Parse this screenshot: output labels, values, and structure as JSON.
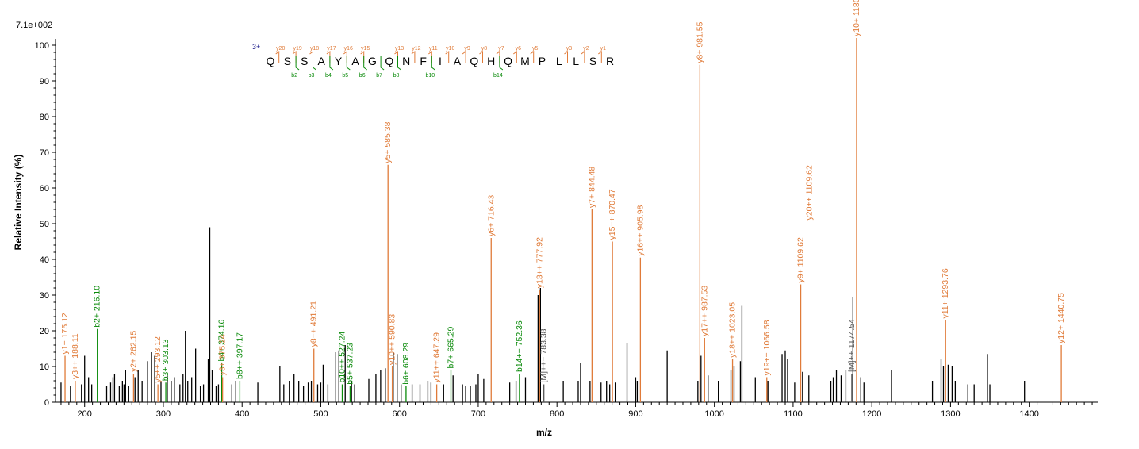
{
  "chart_data": {
    "type": "bar",
    "title": "",
    "max_intensity_label": "7.1e+002",
    "xlabel": "m/z",
    "ylabel": "Relative   Intensity (%)",
    "xlim": [
      163,
      1487
    ],
    "ylim": [
      0,
      100
    ],
    "x_ticks": [
      200,
      300,
      400,
      500,
      600,
      700,
      800,
      900,
      1000,
      1100,
      1200,
      1300,
      1400
    ],
    "y_ticks": [
      0,
      10,
      20,
      30,
      40,
      50,
      60,
      70,
      80,
      90,
      100
    ],
    "colors": {
      "y_ion": "#e07b39",
      "b_ion": "#0a8a0a",
      "other": "#555555",
      "unlabeled": "#000000",
      "charge": "#1a1a8a"
    },
    "sequence": {
      "charge_label": "3+",
      "residues": [
        "Q",
        "S",
        "S",
        "A",
        "Y",
        "A",
        "G",
        "Q",
        "N",
        "F",
        "I",
        "A",
        "Q",
        "H",
        "Q",
        "M",
        "P",
        "L",
        "L",
        "S",
        "R"
      ],
      "y_ions": [
        "y20",
        "y19",
        "y18",
        "y17",
        "y16",
        "y15",
        "",
        "y13",
        "y12",
        "y11",
        "y10",
        "y9",
        "y8",
        "y7",
        "y6",
        "y5",
        "",
        "y3",
        "y2",
        "y1"
      ],
      "b_ions": [
        "",
        "b2",
        "b3",
        "b4",
        "b5",
        "b6",
        "b7",
        "b8",
        "",
        "b10",
        "",
        "",
        "",
        "b14",
        "",
        "",
        "",
        "",
        "",
        ""
      ]
    },
    "labeled_peaks": [
      {
        "mz": 175.12,
        "intensity": 13,
        "label": "y1+ 175.12",
        "ion": "y"
      },
      {
        "mz": 188.11,
        "intensity": 6,
        "label": "y3++ 188.11",
        "ion": "y"
      },
      {
        "mz": 216.1,
        "intensity": 20.5,
        "label": "b2+ 216.10",
        "ion": "b"
      },
      {
        "mz": 262.15,
        "intensity": 8,
        "label": "y2+ 262.15",
        "ion": "y"
      },
      {
        "mz": 293.12,
        "intensity": 5,
        "label": "y5++ 293.12",
        "ion": "y"
      },
      {
        "mz": 303.13,
        "intensity": 5.5,
        "label": "b3+ 303.13",
        "ion": "b"
      },
      {
        "mz": 374.16,
        "intensity": 11,
        "label": "b4+ 374.16",
        "ion": "b"
      },
      {
        "mz": 375.24,
        "intensity": 7,
        "label": "y3+ 375.24",
        "ion": "y"
      },
      {
        "mz": 397.17,
        "intensity": 6,
        "label": "b8++ 397.17",
        "ion": "b"
      },
      {
        "mz": 491.21,
        "intensity": 15,
        "label": "y8++ 491.21",
        "ion": "y"
      },
      {
        "mz": 527.24,
        "intensity": 5,
        "label": "b10++ 527.24",
        "ion": "b"
      },
      {
        "mz": 537.23,
        "intensity": 4.5,
        "label": "b5+ 537.23",
        "ion": "b"
      },
      {
        "mz": 585.38,
        "intensity": 66.5,
        "label": "y5+ 585.38",
        "ion": "y"
      },
      {
        "mz": 590.83,
        "intensity": 10,
        "label": "y10++ 590.83",
        "ion": "y"
      },
      {
        "mz": 608.29,
        "intensity": 4.5,
        "label": "b6+ 608.29",
        "ion": "b"
      },
      {
        "mz": 647.29,
        "intensity": 5,
        "label": "y11++ 647.29",
        "ion": "y"
      },
      {
        "mz": 665.29,
        "intensity": 9,
        "label": "b7+ 665.29",
        "ion": "b"
      },
      {
        "mz": 716.43,
        "intensity": 46,
        "label": "y6+ 716.43",
        "ion": "y"
      },
      {
        "mz": 752.36,
        "intensity": 8,
        "label": "b14++ 752.36",
        "ion": "b"
      },
      {
        "mz": 777.92,
        "intensity": 31.5,
        "label": "y13++ 777.92",
        "ion": "y"
      },
      {
        "mz": 783.38,
        "intensity": 5,
        "label": "[M]+++ 783.38",
        "ion": "other"
      },
      {
        "mz": 844.48,
        "intensity": 54,
        "label": "y7+ 844.48",
        "ion": "y"
      },
      {
        "mz": 870.47,
        "intensity": 45,
        "label": "y15++ 870.47",
        "ion": "y"
      },
      {
        "mz": 905.98,
        "intensity": 40.5,
        "label": "y16++ 905.98",
        "ion": "y"
      },
      {
        "mz": 981.55,
        "intensity": 94.5,
        "label": "y8+ 981.55",
        "ion": "y"
      },
      {
        "mz": 987.53,
        "intensity": 18,
        "label": "y17++ 987.53",
        "ion": "y"
      },
      {
        "mz": 1023.05,
        "intensity": 12,
        "label": "y18++ 1023.05",
        "ion": "y"
      },
      {
        "mz": 1066.58,
        "intensity": 7,
        "label": "y19++ 1066.58",
        "ion": "y"
      },
      {
        "mz": 1109.62,
        "intensity": 33,
        "label": "y9+ 1109.62",
        "ion": "y"
      },
      {
        "mz": 1109.62,
        "intensity": 33,
        "label": "y20++ 1109.62",
        "ion": "y",
        "stack": 1
      },
      {
        "mz": 1174.54,
        "intensity": 8,
        "label": "[M]++ 1174.54",
        "ion": "other"
      },
      {
        "mz": 1180.65,
        "intensity": 102,
        "label": "y10+ 1180.65",
        "ion": "y"
      },
      {
        "mz": 1293.76,
        "intensity": 23,
        "label": "y11+ 1293.76",
        "ion": "y"
      },
      {
        "mz": 1440.75,
        "intensity": 16,
        "label": "y12+ 1440.75",
        "ion": "y"
      }
    ],
    "unlabeled_peaks": [
      [
        170,
        5.5
      ],
      [
        182,
        4.5
      ],
      [
        196,
        5
      ],
      [
        200,
        13
      ],
      [
        205,
        7
      ],
      [
        209,
        5
      ],
      [
        228,
        4.5
      ],
      [
        233,
        5.5
      ],
      [
        236,
        7
      ],
      [
        238,
        8
      ],
      [
        244,
        4.5
      ],
      [
        248,
        6
      ],
      [
        250,
        5
      ],
      [
        252,
        9
      ],
      [
        256,
        4.5
      ],
      [
        264,
        7
      ],
      [
        268,
        9
      ],
      [
        273,
        6
      ],
      [
        280,
        11.5
      ],
      [
        285,
        14
      ],
      [
        289,
        13
      ],
      [
        297,
        6
      ],
      [
        305,
        7.5
      ],
      [
        310,
        6
      ],
      [
        314,
        7
      ],
      [
        321,
        5
      ],
      [
        325,
        8
      ],
      [
        328,
        20
      ],
      [
        331,
        6
      ],
      [
        336,
        7
      ],
      [
        341,
        15
      ],
      [
        347,
        4.5
      ],
      [
        351,
        5
      ],
      [
        357,
        12
      ],
      [
        359,
        49
      ],
      [
        362,
        9
      ],
      [
        367,
        4.5
      ],
      [
        370,
        5
      ],
      [
        387,
        5
      ],
      [
        392,
        6
      ],
      [
        420,
        5.5
      ],
      [
        448,
        10
      ],
      [
        453,
        5
      ],
      [
        460,
        6
      ],
      [
        466,
        8
      ],
      [
        472,
        6
      ],
      [
        478,
        4.5
      ],
      [
        484,
        5.5
      ],
      [
        488,
        6
      ],
      [
        496,
        5
      ],
      [
        500,
        5.5
      ],
      [
        503,
        10.5
      ],
      [
        509,
        5
      ],
      [
        519,
        14
      ],
      [
        523,
        14.5
      ],
      [
        531,
        16
      ],
      [
        539,
        6
      ],
      [
        543,
        5
      ],
      [
        561,
        6.5
      ],
      [
        570,
        8
      ],
      [
        576,
        9
      ],
      [
        582,
        9.5
      ],
      [
        592,
        14
      ],
      [
        597,
        13.5
      ],
      [
        602,
        5
      ],
      [
        616,
        5
      ],
      [
        626,
        5
      ],
      [
        636,
        6
      ],
      [
        640,
        5.5
      ],
      [
        656,
        5
      ],
      [
        668,
        7.5
      ],
      [
        680,
        5
      ],
      [
        684,
        4.5
      ],
      [
        690,
        4.5
      ],
      [
        697,
        5
      ],
      [
        700,
        8
      ],
      [
        707,
        6.5
      ],
      [
        740,
        5.5
      ],
      [
        748,
        6
      ],
      [
        760,
        7
      ],
      [
        776,
        30
      ],
      [
        779,
        32
      ],
      [
        808,
        6
      ],
      [
        827,
        6
      ],
      [
        830,
        11
      ],
      [
        842,
        6
      ],
      [
        856,
        5.5
      ],
      [
        863,
        6
      ],
      [
        867,
        5
      ],
      [
        874,
        5.5
      ],
      [
        889,
        16.5
      ],
      [
        900,
        7
      ],
      [
        902,
        6
      ],
      [
        940,
        14.5
      ],
      [
        979,
        6
      ],
      [
        983,
        13
      ],
      [
        992,
        7.5
      ],
      [
        1005,
        6
      ],
      [
        1021,
        9
      ],
      [
        1025,
        10
      ],
      [
        1033,
        11.5
      ],
      [
        1035,
        27
      ],
      [
        1052,
        7
      ],
      [
        1068,
        6
      ],
      [
        1086,
        13.5
      ],
      [
        1090,
        14.5
      ],
      [
        1093,
        12
      ],
      [
        1102,
        5.5
      ],
      [
        1112,
        8.5
      ],
      [
        1120,
        7.5
      ],
      [
        1148,
        6
      ],
      [
        1151,
        7
      ],
      [
        1155,
        9
      ],
      [
        1161,
        7.5
      ],
      [
        1167,
        9
      ],
      [
        1176,
        29.5
      ],
      [
        1186,
        7
      ],
      [
        1190,
        5.5
      ],
      [
        1225,
        9
      ],
      [
        1277,
        6
      ],
      [
        1288,
        12
      ],
      [
        1291,
        10
      ],
      [
        1297,
        10.5
      ],
      [
        1302,
        10
      ],
      [
        1306,
        6
      ],
      [
        1322,
        5
      ],
      [
        1330,
        5
      ],
      [
        1347,
        13.5
      ],
      [
        1350,
        5
      ],
      [
        1394,
        6
      ]
    ]
  }
}
